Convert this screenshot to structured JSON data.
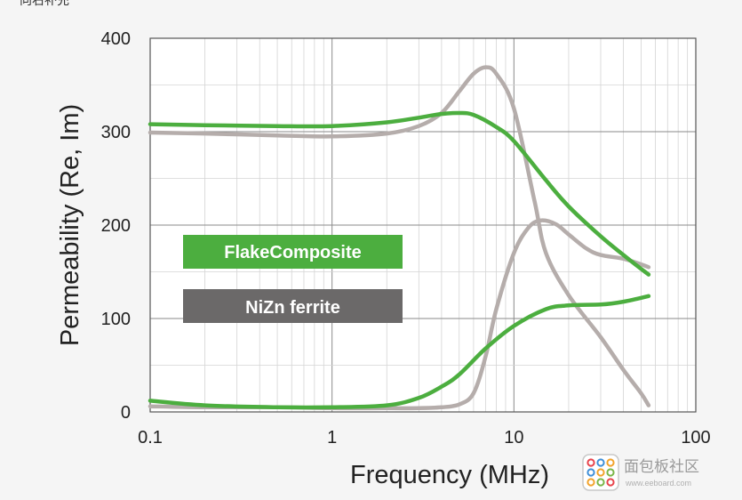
{
  "header_fragment": "向右补充",
  "chart_data": {
    "type": "line",
    "title": "",
    "xlabel": "Frequency (MHz)",
    "ylabel": "Permeability (Re, Im)",
    "xscale": "log",
    "xlim": [
      0.1,
      100
    ],
    "ylim": [
      0,
      400
    ],
    "xticks": [
      0.1,
      1,
      10,
      100
    ],
    "xtick_labels": [
      "0.1",
      "1",
      "10",
      "100"
    ],
    "yticks": [
      0,
      100,
      200,
      300,
      400
    ],
    "ytick_labels": [
      "0",
      "100",
      "200",
      "300",
      "400"
    ],
    "grid": true,
    "legend": [
      {
        "label": "FlakeComposite",
        "color": "#4cae3f"
      },
      {
        "label": "NiZn ferrite",
        "color": "#6b6969"
      }
    ],
    "series": [
      {
        "name": "FlakeComposite Re",
        "color": "#4cae3f",
        "x": [
          0.1,
          0.2,
          0.5,
          1,
          2,
          3,
          4,
          5,
          6,
          8,
          10,
          15,
          20,
          30,
          40,
          55
        ],
        "y": [
          308,
          307,
          306,
          306,
          310,
          315,
          319,
          320,
          318,
          305,
          290,
          248,
          220,
          188,
          168,
          147
        ]
      },
      {
        "name": "FlakeComposite Im",
        "color": "#4cae3f",
        "x": [
          0.1,
          0.2,
          0.5,
          1,
          2,
          3,
          4,
          5,
          7,
          10,
          15,
          20,
          30,
          40,
          55
        ],
        "y": [
          12,
          7,
          5,
          5,
          7,
          15,
          27,
          40,
          68,
          92,
          110,
          114,
          115,
          118,
          124
        ]
      },
      {
        "name": "NiZn ferrite Re",
        "color": "#b5adab",
        "x": [
          0.1,
          0.2,
          0.5,
          1,
          2,
          3,
          4,
          5,
          6,
          7,
          8,
          10,
          13,
          15,
          20,
          30,
          40,
          50,
          55
        ],
        "y": [
          299,
          298,
          296,
          295,
          298,
          306,
          320,
          343,
          362,
          369,
          362,
          325,
          225,
          170,
          125,
          80,
          45,
          20,
          7
        ]
      },
      {
        "name": "NiZn ferrite Im",
        "color": "#b5adab",
        "x": [
          0.1,
          0.2,
          0.5,
          1,
          2,
          3,
          4,
          5,
          6,
          7,
          8,
          10,
          12,
          14,
          17,
          20,
          25,
          30,
          40,
          50,
          55
        ],
        "y": [
          6,
          5,
          5,
          4,
          4,
          4,
          5,
          8,
          20,
          60,
          110,
          170,
          197,
          205,
          201,
          190,
          175,
          168,
          164,
          158,
          155
        ]
      }
    ]
  },
  "watermark": {
    "text": "面包板社区",
    "sub": "www.eeboard.com"
  }
}
